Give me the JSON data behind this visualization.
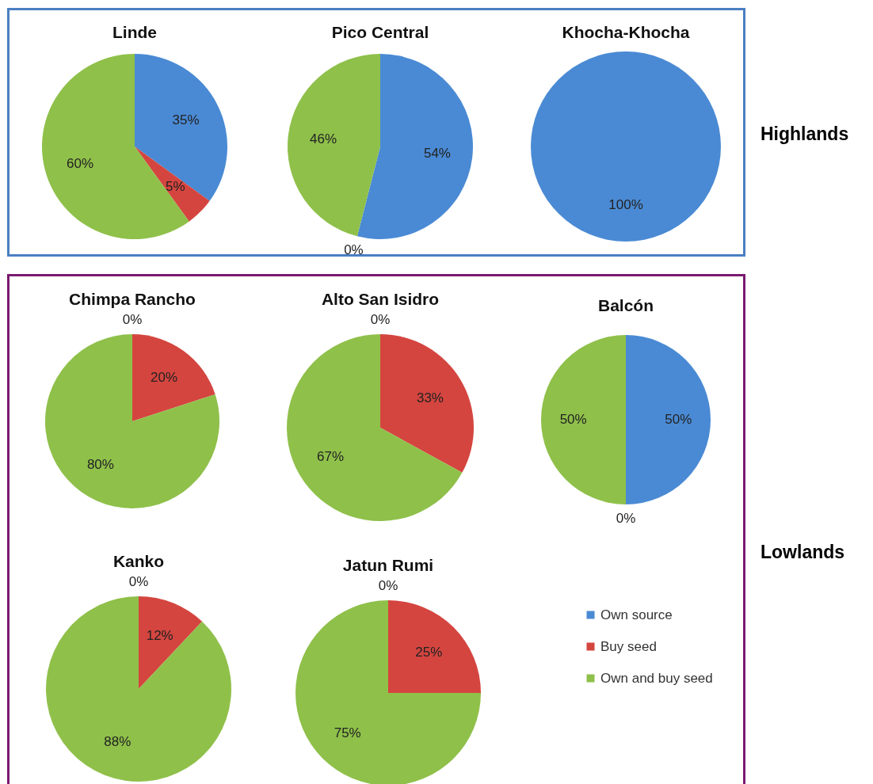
{
  "chart_data": [
    {
      "type": "pie",
      "title": "Linde",
      "categories": [
        null,
        null,
        null
      ],
      "values": [
        35,
        5,
        60
      ],
      "colors": [
        "#4a8ad4",
        "#d4453f",
        "#8fc04a"
      ],
      "value_labels": [
        "35%",
        "5%",
        "60%"
      ]
    },
    {
      "type": "pie",
      "title": "Pico Central",
      "categories": [
        null,
        null,
        null
      ],
      "values": [
        54,
        0,
        46
      ],
      "colors": [
        "#4a8ad4",
        "#d4453f",
        "#8fc04a"
      ],
      "value_labels": [
        "54%",
        "0%",
        "46%"
      ]
    },
    {
      "type": "pie",
      "title": "Khocha-Khocha",
      "categories": [
        null,
        null,
        null
      ],
      "values": [
        100,
        0,
        0
      ],
      "colors": [
        "#4a8ad4",
        "#d4453f",
        "#8fc04a"
      ],
      "value_labels": [
        "100%",
        null,
        null
      ],
      "annotations": [
        "Highlands"
      ]
    },
    {
      "type": "pie",
      "title": "Chimpa Rancho",
      "categories": [
        null,
        null,
        null
      ],
      "values": [
        0,
        20,
        80
      ],
      "colors": [
        "#4a8ad4",
        "#d4453f",
        "#8fc04a"
      ],
      "value_labels": [
        "0%",
        "20%",
        "80%"
      ]
    },
    {
      "type": "pie",
      "title": "Alto San Isidro",
      "categories": [
        null,
        null,
        null
      ],
      "values": [
        0,
        33,
        67
      ],
      "colors": [
        "#4a8ad4",
        "#d4453f",
        "#8fc04a"
      ],
      "value_labels": [
        "0%",
        "33%",
        "67%"
      ]
    },
    {
      "type": "pie",
      "title": "Balcón",
      "categories": [
        null,
        null,
        null
      ],
      "values": [
        50,
        0,
        50
      ],
      "colors": [
        "#4a8ad4",
        "#d4453f",
        "#8fc04a"
      ],
      "value_labels": [
        "50%",
        "0%",
        "50%"
      ]
    },
    {
      "type": "pie",
      "title": "Kanko",
      "categories": [
        null,
        null,
        null
      ],
      "values": [
        0,
        12,
        88
      ],
      "colors": [
        "#4a8ad4",
        "#d4453f",
        "#8fc04a"
      ],
      "value_labels": [
        "0%",
        "12%",
        "88%"
      ]
    },
    {
      "type": "pie",
      "title": "Jatun Rumi",
      "categories": [
        "Own source",
        "Buy seed",
        "Own and buy seed"
      ],
      "values": [
        0,
        25,
        75
      ],
      "colors": [
        "#4a8ad4",
        "#d4453f",
        "#8fc04a"
      ],
      "value_labels": [
        "0%",
        "25%",
        "75%"
      ],
      "legend": "right",
      "annotations": [
        "Lowlands"
      ]
    }
  ]
}
